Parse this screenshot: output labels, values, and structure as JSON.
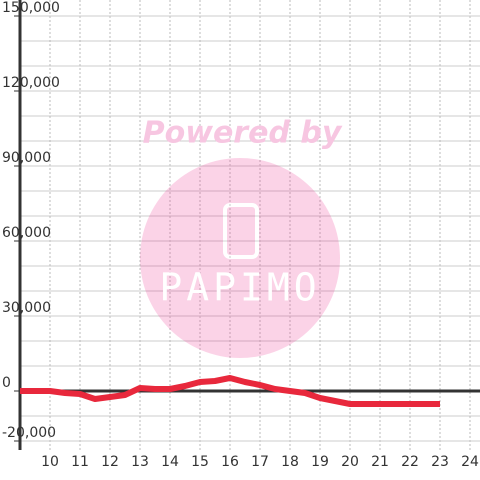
{
  "chart_data": {
    "type": "line",
    "watermark": {
      "text": "Powered by",
      "logo": "PAPIMO"
    },
    "x": [
      9,
      9.5,
      10,
      10.5,
      11,
      11.5,
      12,
      12.5,
      13,
      13.5,
      14,
      14.5,
      15,
      15.5,
      16,
      16.5,
      17,
      17.5,
      18,
      18.5,
      19,
      19.5,
      20,
      20.5,
      21,
      21.5,
      22,
      22.5,
      23
    ],
    "series": [
      {
        "color": "#e8283c",
        "values": [
          0,
          0,
          0,
          -800,
          -1200,
          -3200,
          -2400,
          -1600,
          1200,
          800,
          800,
          2000,
          3600,
          4000,
          5200,
          3600,
          2400,
          800,
          0,
          -800,
          -2800,
          -4000,
          -5200,
          -5200,
          -5200,
          -5200,
          -5200,
          -5200,
          -5200
        ]
      }
    ],
    "xlim": [
      9,
      24.3
    ],
    "xticks": [
      10,
      11,
      12,
      13,
      14,
      15,
      16,
      17,
      18,
      19,
      20,
      21,
      22,
      23,
      24
    ],
    "ylim": [
      -21000,
      151000
    ],
    "yticks": [
      {
        "value": 150000,
        "label": "150,000"
      },
      {
        "value": 120000,
        "label": "120,000"
      },
      {
        "value": 90000,
        "label": "90,000"
      },
      {
        "value": 60000,
        "label": "60,000"
      },
      {
        "value": 30000,
        "label": "30,000"
      },
      0,
      {
        "value": -20000,
        "label": "-20,000"
      }
    ],
    "ygrid": [
      -10000,
      10000,
      20000,
      40000,
      50000,
      70000,
      80000,
      100000,
      110000,
      130000,
      140000
    ],
    "grid": true
  }
}
